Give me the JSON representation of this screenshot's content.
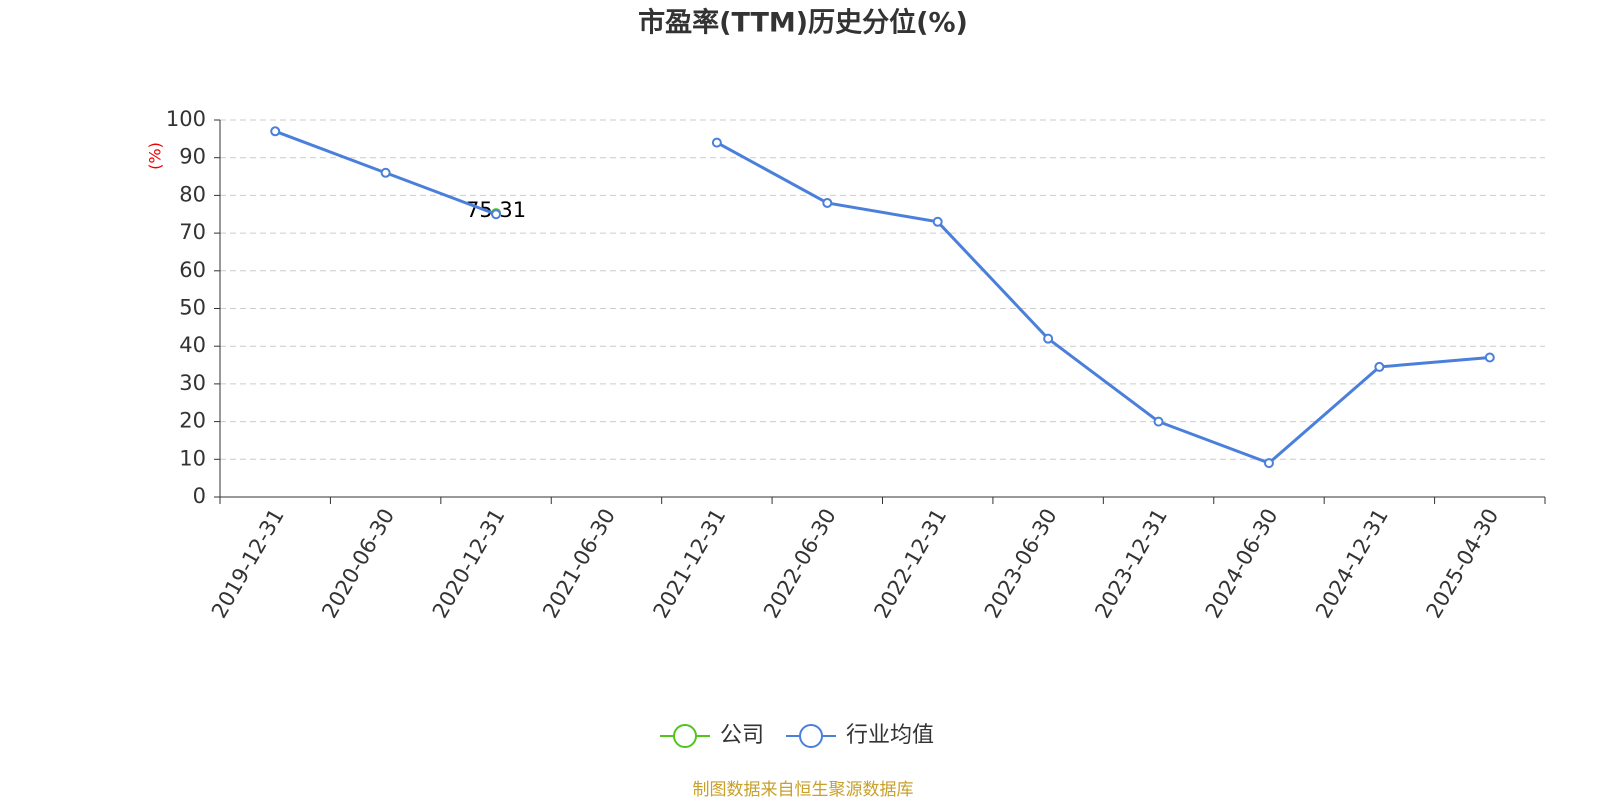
{
  "chart_data": {
    "type": "line",
    "title": "市盈率(TTM)历史分位(%)",
    "y_label": "(%)",
    "categories": [
      "2019-12-31",
      "2020-06-30",
      "2020-12-31",
      "2021-06-30",
      "2021-12-31",
      "2022-06-30",
      "2022-12-31",
      "2023-06-30",
      "2023-12-31",
      "2024-06-30",
      "2024-12-31",
      "2025-04-30"
    ],
    "series": [
      {
        "name": "公司",
        "color": "#52c41a",
        "values": [
          null,
          null,
          75.31,
          null,
          null,
          null,
          null,
          null,
          null,
          null,
          null,
          null
        ],
        "show_labels": true
      },
      {
        "name": "行业均值",
        "color": "#4a7fdb",
        "values": [
          97,
          86,
          75,
          null,
          94,
          78,
          73,
          42,
          20,
          9,
          34.5,
          37
        ],
        "show_labels": false
      }
    ],
    "ylim": [
      0,
      100
    ],
    "yticks": [
      0,
      10,
      20,
      30,
      40,
      50,
      60,
      70,
      80,
      90,
      100
    ],
    "grid": true,
    "source": "制图数据来自恒生聚源数据库"
  }
}
